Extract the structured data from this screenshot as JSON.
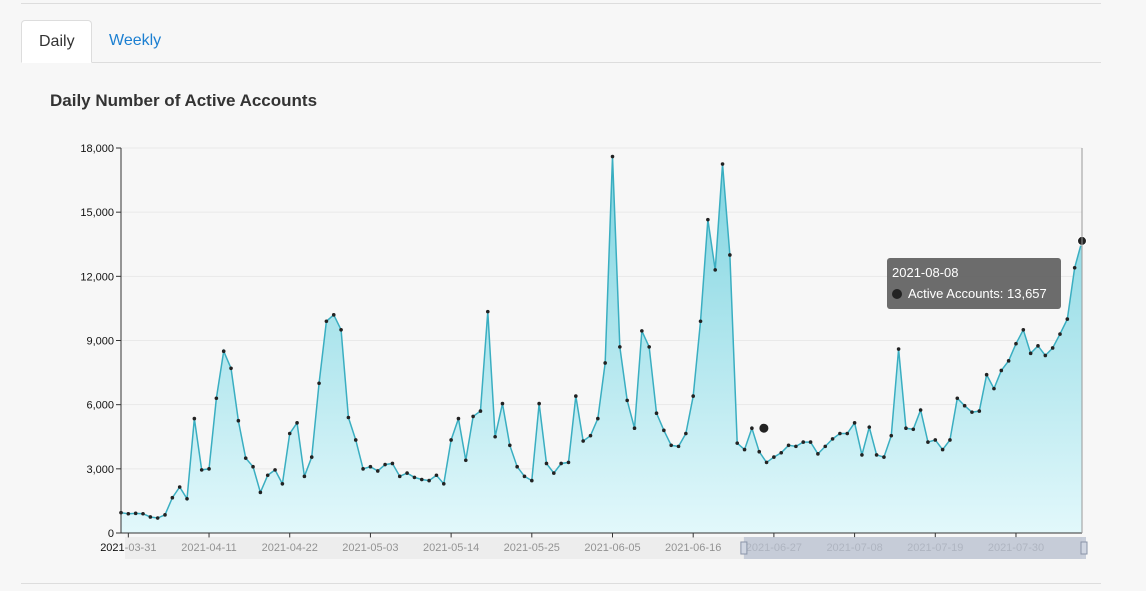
{
  "tabs": [
    {
      "label": "Daily",
      "active": true
    },
    {
      "label": "Weekly",
      "active": false
    }
  ],
  "title": "Daily Number of Active Accounts",
  "tooltip": {
    "date": "2021-08-08",
    "series_label": "Active Accounts: 13,657"
  },
  "colors": {
    "accent": "#1b7fd1",
    "line": "#3aaec1",
    "fill_top": "#7fd4e0",
    "fill_bottom": "#e2f8fb",
    "marker": "#222222"
  },
  "chart_data": {
    "type": "area",
    "start_date": "2021-03-30",
    "x_ticks": [
      "2021-03-31",
      "2021-04-11",
      "2021-04-22",
      "2021-05-03",
      "2021-05-14",
      "2021-05-25",
      "2021-06-05",
      "2021-06-16",
      "2021-06-27",
      "2021-07-08",
      "2021-07-19",
      "2021-07-30"
    ],
    "y_ticks": [
      "0",
      "3,000",
      "6,000",
      "9,000",
      "12,000",
      "15,000",
      "18,000"
    ],
    "ylim": [
      0,
      18000
    ],
    "grid": true,
    "series": [
      {
        "name": "Active Accounts",
        "values": [
          950,
          900,
          920,
          900,
          750,
          700,
          850,
          1650,
          2150,
          1600,
          5350,
          2950,
          3000,
          6300,
          8500,
          7700,
          5250,
          3500,
          3100,
          1900,
          2700,
          2950,
          2300,
          4650,
          5150,
          2650,
          3550,
          7000,
          9900,
          10200,
          9500,
          5400,
          4350,
          3000,
          3100,
          2900,
          3200,
          3250,
          2650,
          2800,
          2600,
          2500,
          2450,
          2700,
          2300,
          4350,
          5350,
          3400,
          5450,
          5700,
          10350,
          4500,
          6050,
          4100,
          3100,
          2650,
          2450,
          6050,
          3250,
          2800,
          3250,
          3300,
          6400,
          4300,
          4550,
          5350,
          7950,
          17600,
          8700,
          6200,
          4900,
          9450,
          8700,
          5600,
          4800,
          4100,
          4050,
          4650,
          6400,
          9900,
          14650,
          12300,
          17250,
          13000,
          4200,
          3900,
          4900,
          3800,
          3300,
          3550,
          3750,
          4100,
          4050,
          4250,
          4250,
          3700,
          4050,
          4400,
          4650,
          4650,
          5150,
          3650,
          4950,
          3650,
          3550,
          4550,
          8600,
          4900,
          4850,
          5750,
          4250,
          4350,
          3900,
          4350,
          6300,
          5950,
          5650,
          5700,
          7400,
          6750,
          7600,
          8050,
          8850,
          9500,
          8400,
          8750,
          8300,
          8650,
          9300,
          10000,
          12400,
          13657
        ]
      }
    ]
  }
}
